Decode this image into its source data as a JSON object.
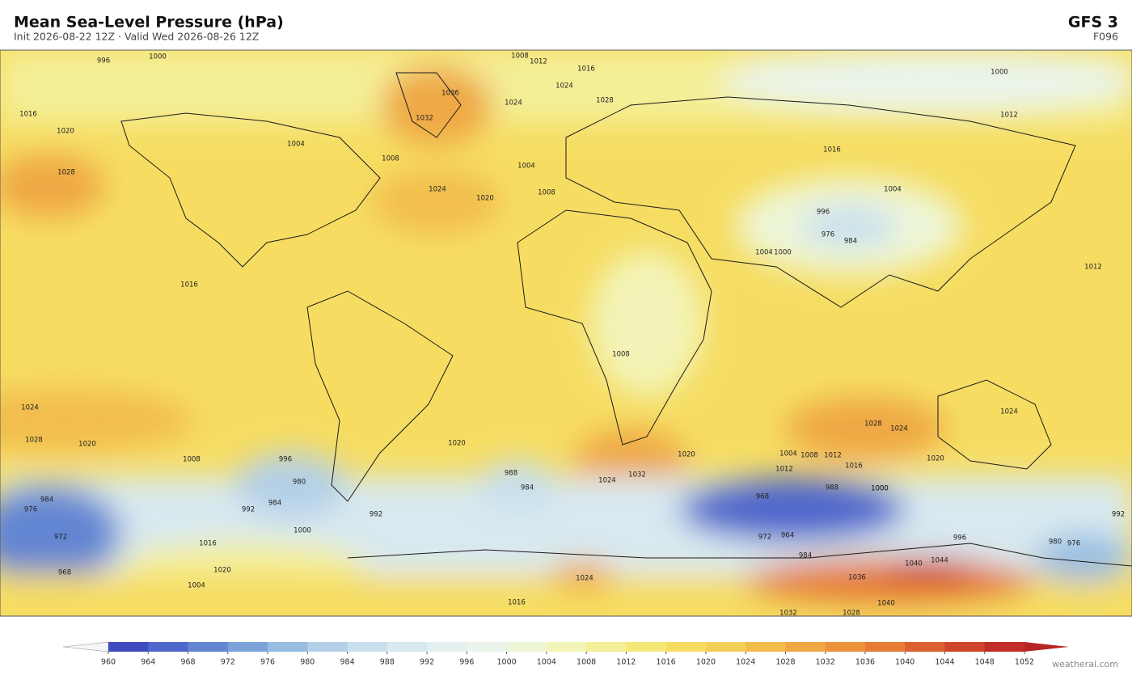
{
  "header": {
    "title": "Mean Sea-Level Pressure  (hPa)",
    "subtitle": "Init 2026-08-22 12Z   ·   Valid Wed 2026-08-26 12Z",
    "model": "GFS  3",
    "forecast_hour": "F096"
  },
  "colorbar": {
    "levels": [
      960,
      964,
      968,
      972,
      976,
      980,
      984,
      988,
      992,
      996,
      1000,
      1004,
      1008,
      1012,
      1016,
      1020,
      1024,
      1028,
      1032,
      1036,
      1040,
      1044,
      1048,
      1052
    ],
    "colors": [
      "#3e4cc0",
      "#5068cc",
      "#6486d2",
      "#7aa2d8",
      "#97bde2",
      "#b3d0e8",
      "#c8dfee",
      "#d8e9f0",
      "#e3f0ef",
      "#eaf4ea",
      "#eef6d8",
      "#f3f4b8",
      "#f4ef98",
      "#f5e878",
      "#f6dd62",
      "#f4cf58",
      "#f2bd4e",
      "#efa844",
      "#ec923c",
      "#e67c36",
      "#dc6030",
      "#cf452b",
      "#c12e28"
    ],
    "under_color": "#f4f6fa",
    "over_color": "#b82424"
  },
  "contour_labels": [
    996,
    1000,
    1008,
    1012,
    1016,
    1000,
    1016,
    1020,
    1028,
    1036,
    1032,
    1024,
    1024,
    1028,
    1004,
    1008,
    1024,
    1020,
    1004,
    1016,
    1012,
    1008,
    1004,
    1000,
    996,
    976,
    984,
    1016,
    1012,
    1004,
    1008,
    1024,
    1028,
    1020,
    1008,
    996,
    980,
    984,
    992,
    1000,
    976,
    984,
    972,
    968,
    1016,
    1020,
    1004,
    992,
    988,
    984,
    1020,
    1032,
    1024,
    1020,
    1008,
    968,
    972,
    964,
    984,
    988,
    1000,
    1004,
    1012,
    1016,
    1028,
    1024,
    1020,
    1024,
    992,
    996,
    1040,
    1044,
    1036,
    1040,
    1032,
    1028,
    980,
    976,
    1024,
    1016,
    1012,
    1000
  ],
  "watermark": "weatherai.com"
}
